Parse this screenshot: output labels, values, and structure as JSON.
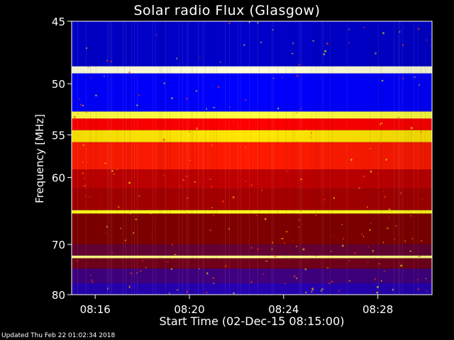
{
  "chart_data": {
    "type": "heatmap",
    "title": "Solar radio Flux (Glasgow)",
    "xlabel": "Start Time (02-Dec-15 08:15:00)",
    "ylabel": "Frequency [MHz]",
    "x_ticks": [
      "08:16",
      "08:20",
      "08:24",
      "08:28"
    ],
    "x_tick_minutes": [
      1,
      5,
      9,
      13
    ],
    "xlim_minutes": [
      0,
      15.3
    ],
    "y_ticks": [
      45,
      50,
      55,
      60,
      70,
      80
    ],
    "ylim": [
      45,
      80
    ],
    "y_scale": "reciprocal",
    "colormap": [
      "#000080",
      "#0000ff",
      "#800000",
      "#ff0000",
      "#ffff00",
      "#ffffff"
    ],
    "bands": [
      {
        "f0": 45.0,
        "f1": 48.5,
        "level": 0.12
      },
      {
        "f0": 48.5,
        "f1": 49.1,
        "level": 0.97
      },
      {
        "f0": 49.1,
        "f1": 52.6,
        "level": 0.2
      },
      {
        "f0": 52.6,
        "f1": 53.3,
        "level": 0.85
      },
      {
        "f0": 53.3,
        "f1": 54.5,
        "level": 0.6
      },
      {
        "f0": 54.5,
        "f1": 55.8,
        "level": 0.78
      },
      {
        "f0": 55.8,
        "f1": 59.0,
        "level": 0.62
      },
      {
        "f0": 59.0,
        "f1": 61.5,
        "level": 0.5
      },
      {
        "f0": 61.5,
        "f1": 64.5,
        "level": 0.46
      },
      {
        "f0": 64.5,
        "f1": 65.0,
        "level": 0.82
      },
      {
        "f0": 65.0,
        "f1": 70.0,
        "level": 0.4
      },
      {
        "f0": 70.0,
        "f1": 72.0,
        "level": 0.36
      },
      {
        "f0": 72.0,
        "f1": 72.5,
        "level": 0.9
      },
      {
        "f0": 72.5,
        "f1": 74.5,
        "level": 0.38
      },
      {
        "f0": 74.5,
        "f1": 77.5,
        "level": 0.3
      },
      {
        "f0": 77.5,
        "f1": 80.0,
        "level": 0.26
      }
    ]
  },
  "footer": {
    "updated": "Updated Thu Feb 22 01:02:34 2018"
  }
}
